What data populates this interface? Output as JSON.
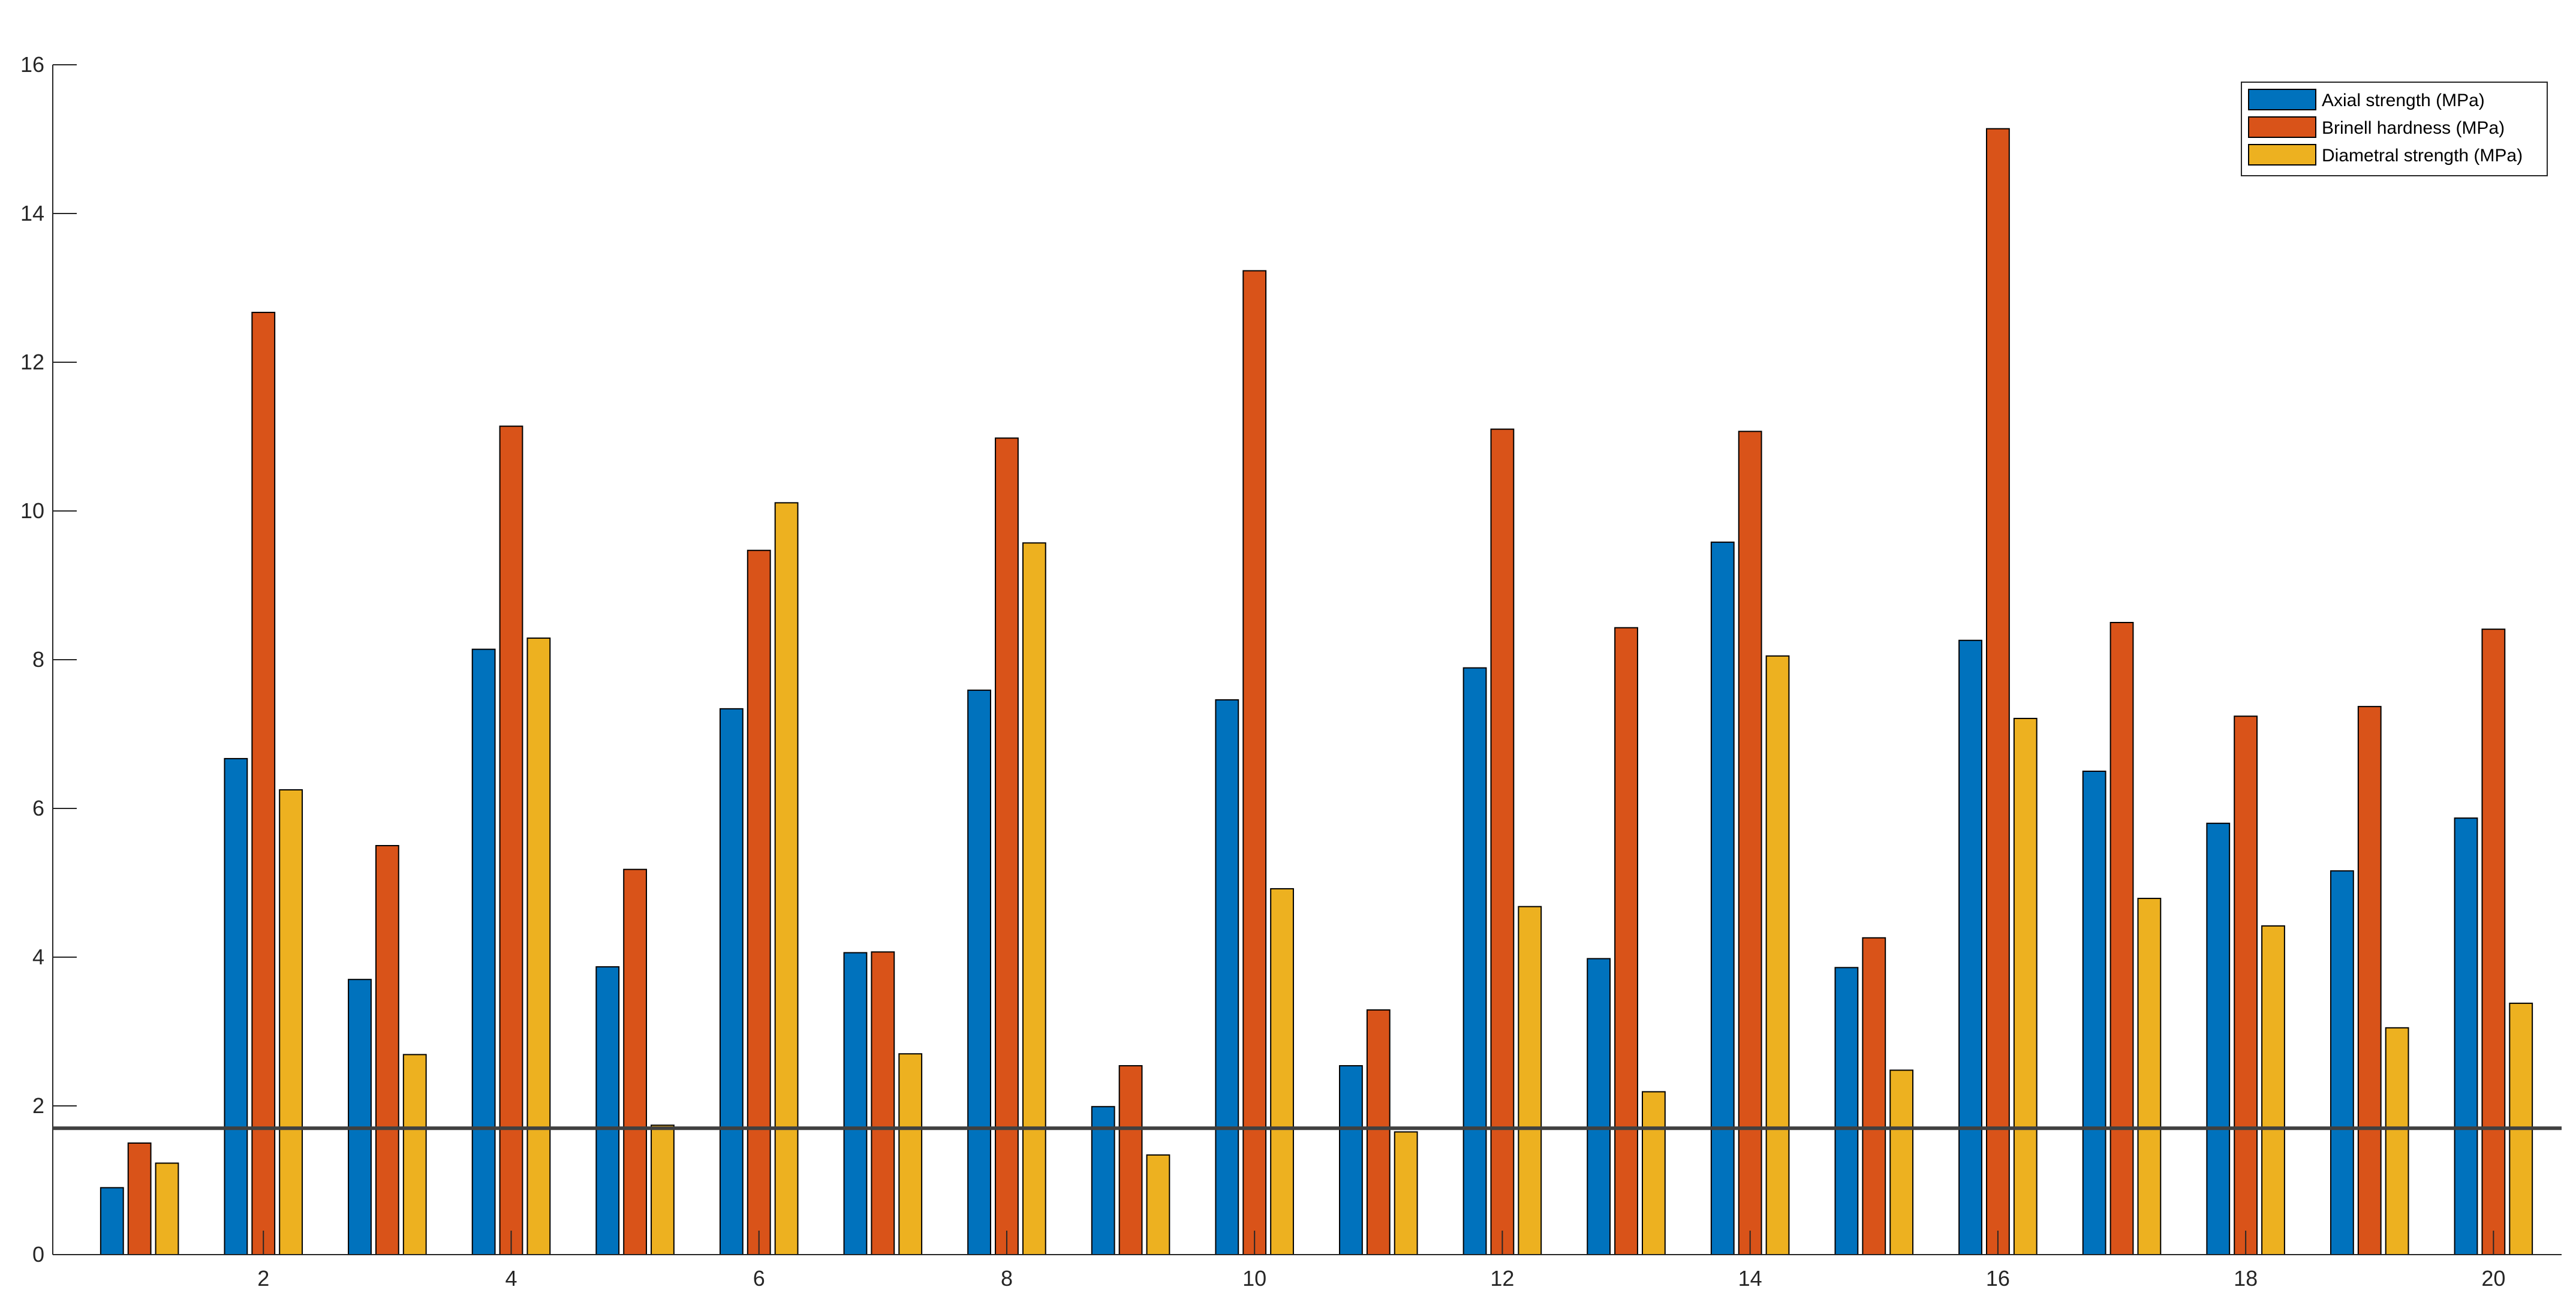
{
  "chart_data": {
    "type": "bar",
    "title": "",
    "xlabel": "",
    "ylabel": "",
    "x": [
      1,
      2,
      3,
      4,
      5,
      6,
      7,
      8,
      9,
      10,
      11,
      12,
      13,
      14,
      15,
      16,
      17,
      18,
      19,
      20
    ],
    "xticks": [
      "2",
      "4",
      "6",
      "8",
      "10",
      "12",
      "14",
      "16",
      "18",
      "20"
    ],
    "yticks": [
      "0",
      "2",
      "4",
      "6",
      "8",
      "10",
      "12",
      "14",
      "16"
    ],
    "ylim": [
      0,
      16
    ],
    "series": [
      {
        "name": "Axial strength (MPa)",
        "color": "#0072BD",
        "values": [
          0.9,
          6.67,
          3.7,
          8.14,
          3.87,
          7.34,
          4.06,
          7.59,
          1.99,
          7.46,
          2.54,
          7.89,
          3.98,
          9.58,
          3.86,
          8.26,
          6.5,
          5.8,
          5.16,
          5.87
        ]
      },
      {
        "name": "Brinell hardness (MPa)",
        "color": "#D95319",
        "values": [
          1.5,
          12.67,
          5.5,
          11.14,
          5.18,
          9.47,
          4.07,
          10.98,
          2.54,
          13.23,
          3.29,
          11.1,
          8.43,
          11.07,
          4.26,
          15.14,
          8.5,
          7.24,
          7.37,
          8.41
        ]
      },
      {
        "name": "Diametral strength (MPa)",
        "color": "#EDB120",
        "values": [
          1.23,
          6.25,
          2.69,
          8.29,
          1.74,
          10.11,
          2.7,
          9.57,
          1.34,
          4.92,
          1.65,
          4.68,
          2.19,
          8.05,
          2.48,
          7.21,
          4.79,
          4.42,
          3.05,
          3.38
        ]
      }
    ],
    "reference_line": {
      "y": 1.7,
      "color": "#404040"
    },
    "grid": false,
    "legend_position": "top-right"
  }
}
